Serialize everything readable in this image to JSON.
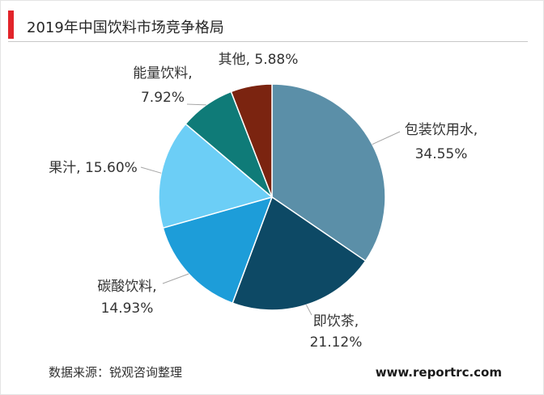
{
  "theme": {
    "accent": "#e2242a"
  },
  "footer": {
    "source": "数据来源：锐观咨询整理",
    "website": "www.reportrc.com"
  },
  "chart_data": {
    "type": "pie",
    "title": "2019年中国饮料市场竞争格局",
    "labels": [
      "包装饮用水",
      "即饮茶",
      "碳酸饮料",
      "果汁",
      "能量饮料",
      "其他"
    ],
    "values": [
      34.55,
      21.12,
      14.93,
      15.6,
      7.92,
      5.88
    ],
    "value_labels": [
      "34.55%",
      "21.12%",
      "14.93%",
      "15.60%",
      "7.92%",
      "5.88%"
    ],
    "label_separator": ",",
    "colors": [
      "#5b8fa8",
      "#0d4965",
      "#1d9dd9",
      "#6ccef6",
      "#0f7b78",
      "#7b2410"
    ]
  }
}
